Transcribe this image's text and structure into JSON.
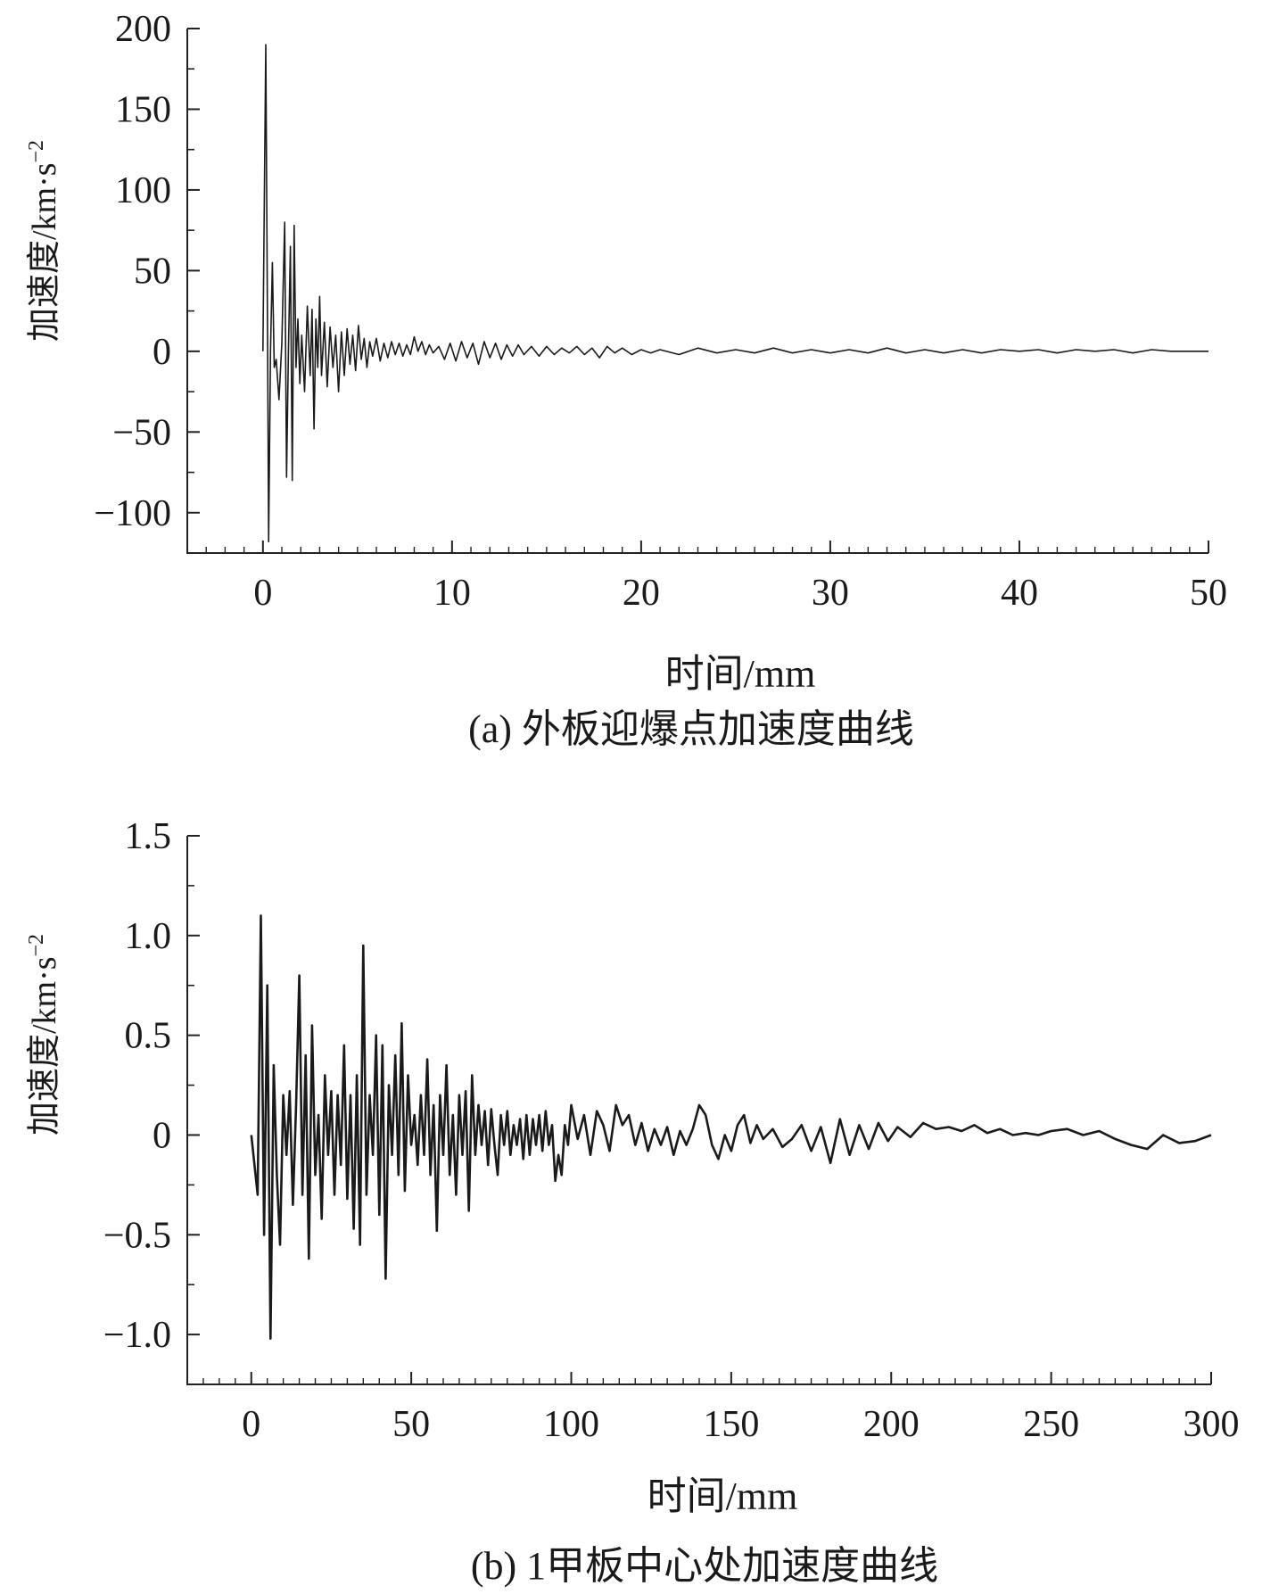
{
  "chart_data": [
    {
      "type": "line",
      "caption": "(a) 外板迎爆点加速度曲线",
      "xlabel": "时间/mm",
      "ylabel": "加速度/km·s",
      "ylabel_sup": "−2",
      "xlim": [
        -4,
        50
      ],
      "ylim": [
        -125,
        200
      ],
      "xticks": [
        0,
        10,
        20,
        30,
        40,
        50
      ],
      "xtick_labels": [
        "0",
        "10",
        "20",
        "30",
        "40",
        "50"
      ],
      "yticks": [
        200,
        150,
        100,
        50,
        0,
        -50,
        -100
      ],
      "ytick_labels": [
        "200",
        "150",
        "100",
        "50",
        "0",
        "−50",
        "−100"
      ],
      "grid": false,
      "x": [
        0,
        0.15,
        0.25,
        0.3,
        0.4,
        0.5,
        0.6,
        0.7,
        0.85,
        1.0,
        1.15,
        1.25,
        1.35,
        1.45,
        1.55,
        1.65,
        1.75,
        1.85,
        1.95,
        2.05,
        2.2,
        2.35,
        2.5,
        2.6,
        2.7,
        2.8,
        2.9,
        3.0,
        3.1,
        3.25,
        3.4,
        3.55,
        3.7,
        3.85,
        4.0,
        4.15,
        4.3,
        4.45,
        4.6,
        4.75,
        4.9,
        5.05,
        5.2,
        5.35,
        5.5,
        5.65,
        5.8,
        6.0,
        6.2,
        6.4,
        6.6,
        6.8,
        7.0,
        7.2,
        7.4,
        7.6,
        7.8,
        8.0,
        8.2,
        8.4,
        8.6,
        8.8,
        9.0,
        9.3,
        9.6,
        9.9,
        10.2,
        10.5,
        10.8,
        11.1,
        11.4,
        11.7,
        12.0,
        12.3,
        12.6,
        12.9,
        13.2,
        13.5,
        13.8,
        14.2,
        14.6,
        15.0,
        15.4,
        15.8,
        16.2,
        16.6,
        17.0,
        17.4,
        17.8,
        18.2,
        18.6,
        19.0,
        19.5,
        20.0,
        20.5,
        21.0,
        22,
        23,
        24,
        25,
        26,
        27,
        28,
        29,
        30,
        31,
        32,
        33,
        34,
        35,
        36,
        37,
        38,
        39,
        40,
        41,
        42,
        43,
        44,
        45,
        46,
        47,
        48,
        49,
        50
      ],
      "y": [
        0,
        190,
        0,
        -118,
        0,
        55,
        -10,
        -5,
        -30,
        5,
        80,
        -78,
        0,
        65,
        -80,
        78,
        -10,
        20,
        -20,
        10,
        -25,
        28,
        -15,
        26,
        -48,
        20,
        -10,
        34,
        -15,
        18,
        -22,
        15,
        -10,
        10,
        -25,
        12,
        -15,
        14,
        -8,
        10,
        -12,
        16,
        -5,
        8,
        -10,
        6,
        -3,
        8,
        -6,
        5,
        -4,
        6,
        -2,
        5,
        -3,
        4,
        -2,
        9,
        0,
        6,
        -2,
        4,
        -1,
        3,
        -5,
        5,
        -6,
        6,
        -4,
        5,
        -8,
        6,
        -4,
        5,
        -5,
        4,
        -3,
        4,
        -2,
        3,
        -3,
        3,
        -2,
        2,
        -1,
        3,
        -2,
        2,
        -4,
        3,
        -1,
        2,
        -2,
        1,
        -1,
        1,
        -2,
        2,
        -1,
        1,
        -1,
        2,
        -1,
        1,
        -1,
        1,
        -1,
        2,
        -1,
        1,
        -1,
        1,
        -1,
        1,
        0,
        1,
        -1,
        1,
        0,
        1,
        -1,
        1,
        0,
        0,
        0
      ]
    },
    {
      "type": "line",
      "caption": "(b) 1甲板中心处加速度曲线",
      "xlabel": "时间/mm",
      "ylabel": "加速度/km·s",
      "ylabel_sup": "−2",
      "xlim": [
        -20,
        300
      ],
      "ylim": [
        -1.25,
        1.5
      ],
      "xticks": [
        0,
        50,
        100,
        150,
        200,
        250,
        300
      ],
      "xtick_labels": [
        "0",
        "50",
        "100",
        "150",
        "200",
        "250",
        "300"
      ],
      "yticks": [
        1.5,
        1.0,
        0.5,
        0,
        -0.5,
        -1.0
      ],
      "ytick_labels": [
        "1.5",
        "1.0",
        "0.5",
        "0",
        "−0.5",
        "−1.0"
      ],
      "grid": false,
      "x": [
        0,
        2,
        3,
        4,
        5,
        6,
        7,
        8,
        9,
        10,
        11,
        12,
        13,
        14,
        15,
        16,
        17,
        18,
        19,
        20,
        21,
        22,
        23,
        24,
        25,
        26,
        27,
        28,
        29,
        30,
        31,
        32,
        33,
        34,
        35,
        36,
        37,
        38,
        39,
        40,
        41,
        42,
        43,
        44,
        45,
        46,
        47,
        48,
        49,
        50,
        51,
        52,
        53,
        54,
        55,
        56,
        57,
        58,
        59,
        60,
        61,
        62,
        63,
        64,
        65,
        66,
        67,
        68,
        69,
        70,
        71,
        72,
        73,
        74,
        75,
        76,
        77,
        78,
        79,
        80,
        81,
        82,
        83,
        84,
        85,
        86,
        87,
        88,
        89,
        90,
        91,
        92,
        93,
        94,
        95,
        96,
        97,
        98,
        99,
        100,
        102,
        104,
        106,
        108,
        110,
        112,
        114,
        116,
        118,
        120,
        122,
        124,
        126,
        128,
        130,
        132,
        134,
        136,
        138,
        140,
        142,
        144,
        146,
        148,
        150,
        152,
        154,
        156,
        158,
        160,
        163,
        166,
        169,
        172,
        175,
        178,
        181,
        184,
        187,
        190,
        193,
        196,
        199,
        202,
        206,
        210,
        214,
        218,
        222,
        226,
        230,
        234,
        238,
        242,
        246,
        250,
        255,
        260,
        265,
        270,
        275,
        280,
        285,
        290,
        295,
        300
      ],
      "y": [
        0,
        -0.3,
        1.1,
        -0.5,
        0.75,
        -1.02,
        0.35,
        -0.2,
        -0.55,
        0.2,
        -0.1,
        0.22,
        -0.35,
        0.15,
        0.8,
        -0.3,
        0.4,
        -0.62,
        0.55,
        -0.2,
        0.1,
        -0.42,
        0.3,
        -0.1,
        0.22,
        -0.3,
        0.2,
        -0.15,
        0.45,
        -0.32,
        0.2,
        -0.47,
        0.3,
        -0.55,
        0.95,
        -0.3,
        0.2,
        -0.1,
        0.5,
        -0.4,
        0.45,
        -0.72,
        0.25,
        -0.1,
        0.4,
        -0.2,
        0.56,
        -0.28,
        0.3,
        -0.05,
        0.1,
        -0.15,
        0.2,
        -0.1,
        0.38,
        -0.2,
        0.15,
        -0.48,
        0.2,
        -0.1,
        0.35,
        -0.2,
        0.1,
        -0.3,
        0.2,
        -0.1,
        0.22,
        -0.38,
        0.3,
        -0.1,
        0.15,
        -0.05,
        0.12,
        -0.15,
        0.13,
        -0.05,
        -0.2,
        0.1,
        -0.05,
        0.12,
        -0.1,
        0.05,
        -0.05,
        0.08,
        -0.12,
        0.1,
        -0.1,
        0.08,
        -0.05,
        0.1,
        -0.08,
        0.12,
        -0.05,
        0.05,
        -0.23,
        -0.1,
        -0.2,
        0.05,
        -0.05,
        0.15,
        -0.02,
        0.1,
        -0.1,
        0.12,
        0.05,
        -0.08,
        0.15,
        0.05,
        0.1,
        -0.05,
        0.06,
        -0.08,
        0.03,
        -0.05,
        0.04,
        -0.1,
        0.02,
        -0.05,
        0.03,
        0.15,
        0.1,
        -0.05,
        -0.12,
        0.0,
        -0.08,
        0.05,
        0.1,
        -0.04,
        0.05,
        -0.02,
        0.03,
        -0.06,
        -0.02,
        0.05,
        -0.08,
        0.04,
        -0.14,
        0.08,
        -0.1,
        0.05,
        -0.07,
        0.06,
        -0.03,
        0.04,
        -0.01,
        0.06,
        0.03,
        0.04,
        0.02,
        0.05,
        0.01,
        0.03,
        0.0,
        0.01,
        0.0,
        0.02,
        0.03,
        0.0,
        0.02,
        -0.02,
        -0.05,
        -0.07,
        0.0,
        -0.04,
        -0.03,
        0.0
      ]
    }
  ]
}
